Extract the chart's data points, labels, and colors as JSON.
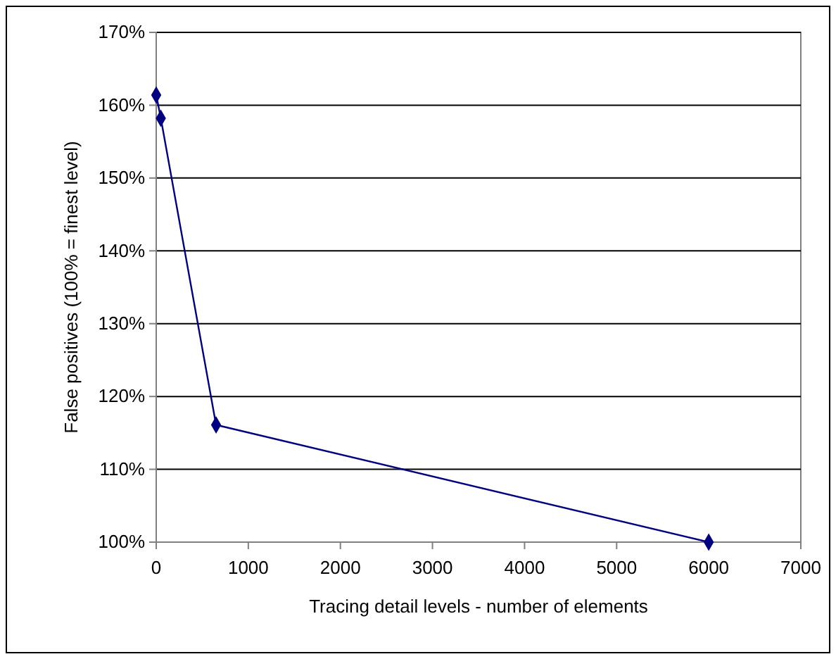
{
  "chart_data": {
    "type": "line",
    "xlabel": "Tracing detail levels - number of elements",
    "ylabel": "False positives (100% = finest level)",
    "x": [
      0,
      50,
      650,
      6000
    ],
    "series": [
      {
        "color": "#000080",
        "values": [
          161.4,
          158.2,
          116.1,
          100
        ]
      }
    ],
    "xlim": [
      0,
      7000
    ],
    "xticks": [
      0,
      1000,
      2000,
      3000,
      4000,
      5000,
      6000,
      7000
    ],
    "ylim": [
      100,
      170
    ],
    "yticks": [
      {
        "value": 100,
        "label": "100%"
      },
      {
        "value": 110,
        "label": "110%"
      },
      {
        "value": 120,
        "label": "120%"
      },
      {
        "value": 130,
        "label": "130%"
      },
      {
        "value": 140,
        "label": "140%"
      },
      {
        "value": 150,
        "label": "150%"
      },
      {
        "value": 160,
        "label": "160%"
      },
      {
        "value": 170,
        "label": "170%"
      }
    ],
    "grid": "y",
    "marker": "diamond",
    "line_style": "solid"
  }
}
